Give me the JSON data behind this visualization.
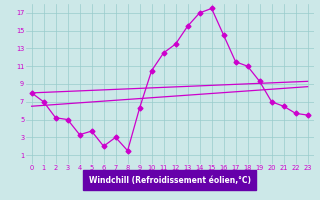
{
  "xlabel": "Windchill (Refroidissement éolien,°C)",
  "bg_color": "#cce8e8",
  "label_bar_color": "#6600aa",
  "line_color": "#cc00cc",
  "grid_color": "#99cccc",
  "x_ticks": [
    0,
    1,
    2,
    3,
    4,
    5,
    6,
    7,
    8,
    9,
    10,
    11,
    12,
    13,
    14,
    15,
    16,
    17,
    18,
    19,
    20,
    21,
    22,
    23
  ],
  "y_ticks": [
    1,
    3,
    5,
    7,
    9,
    11,
    13,
    15,
    17
  ],
  "ylim": [
    0.0,
    18.0
  ],
  "xlim": [
    -0.5,
    23.5
  ],
  "main_x": [
    0,
    1,
    2,
    3,
    4,
    5,
    6,
    7,
    8,
    9,
    10,
    11,
    12,
    13,
    14,
    15,
    16,
    17,
    18,
    19,
    20,
    21,
    22,
    23
  ],
  "main_y": [
    8.0,
    7.0,
    5.2,
    5.0,
    3.3,
    3.7,
    2.0,
    3.0,
    1.5,
    6.3,
    10.5,
    12.5,
    13.5,
    15.5,
    17.0,
    17.5,
    14.5,
    11.5,
    11.0,
    9.3,
    7.0,
    6.5,
    5.7,
    5.5
  ],
  "line1_x": [
    0,
    23
  ],
  "line1_y": [
    8.0,
    9.3
  ],
  "line2_x": [
    0,
    23
  ],
  "line2_y": [
    6.5,
    8.7
  ]
}
